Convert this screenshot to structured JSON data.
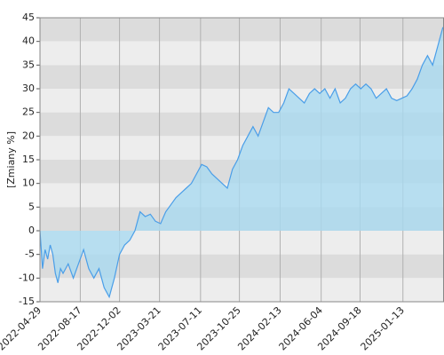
{
  "chart_data": {
    "type": "area",
    "y_label": "[Zmiany %]",
    "color": "#4a9ee8",
    "fill": "#a9daf0",
    "x": [
      "2022-04-29",
      "2022-05-06",
      "2022-05-13",
      "2022-05-20",
      "2022-05-27",
      "2022-06-03",
      "2022-06-10",
      "2022-06-17",
      "2022-06-24",
      "2022-07-01",
      "2022-07-15",
      "2022-07-29",
      "2022-08-12",
      "2022-08-26",
      "2022-09-09",
      "2022-09-23",
      "2022-10-07",
      "2022-10-21",
      "2022-11-04",
      "2022-11-18",
      "2022-12-02",
      "2022-12-16",
      "2022-12-30",
      "2023-01-13",
      "2023-01-27",
      "2023-02-10",
      "2023-02-24",
      "2023-03-10",
      "2023-03-24",
      "2023-04-07",
      "2023-04-21",
      "2023-05-05",
      "2023-05-19",
      "2023-06-02",
      "2023-06-16",
      "2023-06-30",
      "2023-07-14",
      "2023-07-28",
      "2023-08-11",
      "2023-08-25",
      "2023-09-08",
      "2023-09-22",
      "2023-10-06",
      "2023-10-20",
      "2023-11-03",
      "2023-11-17",
      "2023-12-01",
      "2023-12-15",
      "2023-12-29",
      "2024-01-12",
      "2024-01-26",
      "2024-02-09",
      "2024-02-23",
      "2024-03-08",
      "2024-03-22",
      "2024-04-05",
      "2024-04-19",
      "2024-05-03",
      "2024-05-17",
      "2024-05-31",
      "2024-06-14",
      "2024-06-28",
      "2024-07-12",
      "2024-07-26",
      "2024-08-09",
      "2024-08-23",
      "2024-09-06",
      "2024-09-20",
      "2024-10-04",
      "2024-10-18",
      "2024-11-01",
      "2024-11-15",
      "2024-11-29",
      "2024-12-13",
      "2024-12-27",
      "2025-01-10",
      "2025-01-24",
      "2025-02-07",
      "2025-02-21",
      "2025-03-07",
      "2025-03-21",
      "2025-04-04",
      "2025-04-18",
      "2025-05-02"
    ],
    "values": [
      0,
      -8,
      -4,
      -6,
      -3,
      -5,
      -9,
      -11,
      -8,
      -9,
      -7,
      -10,
      -7,
      -4,
      -8,
      -10,
      -8,
      -12,
      -14,
      -10,
      -5,
      -3,
      -2,
      0,
      4,
      3,
      3.5,
      2,
      1.5,
      4,
      5.5,
      7,
      8,
      9,
      10,
      12,
      14,
      13.5,
      12,
      11,
      10,
      9,
      13,
      15,
      18,
      20,
      22,
      20,
      23,
      26,
      25,
      25,
      27,
      30,
      29,
      28,
      27,
      29,
      30,
      29,
      30,
      28,
      30,
      27,
      28,
      30,
      31,
      30,
      31,
      30,
      28,
      29,
      30,
      28,
      27.5,
      28,
      28.5,
      30,
      32,
      35,
      37,
      35,
      39,
      43
    ],
    "xlim": [
      "2022-04-29",
      "2025-05-05"
    ],
    "xticks": [
      "2022-04-29",
      "2022-08-17",
      "2022-12-02",
      "2023-03-21",
      "2023-07-11",
      "2023-10-25",
      "2024-02-13",
      "2024-06-04",
      "2024-09-18",
      "2025-01-13"
    ],
    "ylim": [
      -15,
      45
    ],
    "yticks": [
      -15,
      -10,
      -5,
      0,
      5,
      10,
      15,
      20,
      25,
      30,
      35,
      40,
      45
    ],
    "band_colors": [
      "#dcdcdc",
      "#ededed"
    ]
  }
}
